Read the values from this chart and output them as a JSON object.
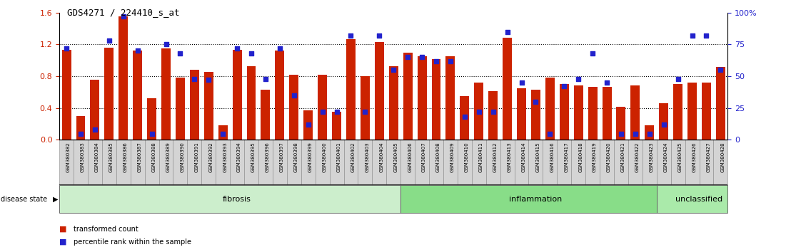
{
  "title": "GDS4271 / 224410_s_at",
  "samples": [
    "GSM380382",
    "GSM380383",
    "GSM380384",
    "GSM380385",
    "GSM380386",
    "GSM380387",
    "GSM380388",
    "GSM380389",
    "GSM380390",
    "GSM380391",
    "GSM380392",
    "GSM380393",
    "GSM380394",
    "GSM380395",
    "GSM380396",
    "GSM380397",
    "GSM380398",
    "GSM380399",
    "GSM380400",
    "GSM380401",
    "GSM380402",
    "GSM380403",
    "GSM380404",
    "GSM380405",
    "GSM380406",
    "GSM380407",
    "GSM380408",
    "GSM380409",
    "GSM380410",
    "GSM380411",
    "GSM380412",
    "GSM380413",
    "GSM380414",
    "GSM380415",
    "GSM380416",
    "GSM380417",
    "GSM380418",
    "GSM380419",
    "GSM380420",
    "GSM380421",
    "GSM380422",
    "GSM380423",
    "GSM380424",
    "GSM380425",
    "GSM380426",
    "GSM380427",
    "GSM380428"
  ],
  "bar_values": [
    1.13,
    0.3,
    0.76,
    1.16,
    1.55,
    1.12,
    0.52,
    1.15,
    0.78,
    0.88,
    0.85,
    0.18,
    1.13,
    0.93,
    0.63,
    1.12,
    0.82,
    0.37,
    0.82,
    0.35,
    1.27,
    0.8,
    1.23,
    0.93,
    1.1,
    1.05,
    1.02,
    1.05,
    0.55,
    0.72,
    0.61,
    1.28,
    0.65,
    0.63,
    0.78,
    0.7,
    0.68,
    0.67,
    0.67,
    0.42,
    0.68,
    0.18,
    0.46,
    0.7,
    0.72,
    0.72,
    0.92
  ],
  "dot_values_pct": [
    72,
    5,
    8,
    78,
    97,
    70,
    5,
    75,
    68,
    48,
    47,
    5,
    72,
    68,
    48,
    72,
    35,
    12,
    22,
    22,
    82,
    22,
    82,
    55,
    65,
    65,
    62,
    62,
    18,
    22,
    22,
    85,
    45,
    30,
    5,
    42,
    48,
    68,
    45,
    5,
    5,
    5,
    12,
    48,
    82,
    82,
    55
  ],
  "groups": [
    {
      "label": "fibrosis",
      "start": 0,
      "end": 24,
      "color": "#cceecc"
    },
    {
      "label": "inflammation",
      "start": 24,
      "end": 42,
      "color": "#88dd88"
    },
    {
      "label": "unclassified",
      "start": 42,
      "end": 47,
      "color": "#aaeaaa"
    }
  ],
  "bar_color": "#cc2200",
  "dot_color": "#2222cc",
  "ylim_left": [
    0,
    1.6
  ],
  "ylim_right": [
    0,
    100
  ],
  "y_ticks_left": [
    0,
    0.4,
    0.8,
    1.2,
    1.6
  ],
  "y_ticks_right": [
    0,
    25,
    50,
    75,
    100
  ],
  "right_y_labels": [
    "0",
    "25",
    "50",
    "75",
    "100%"
  ],
  "dotted_lines": [
    0.4,
    0.8,
    1.2
  ],
  "tick_label_color_left": "#cc2200",
  "tick_label_color_right": "#2222cc"
}
